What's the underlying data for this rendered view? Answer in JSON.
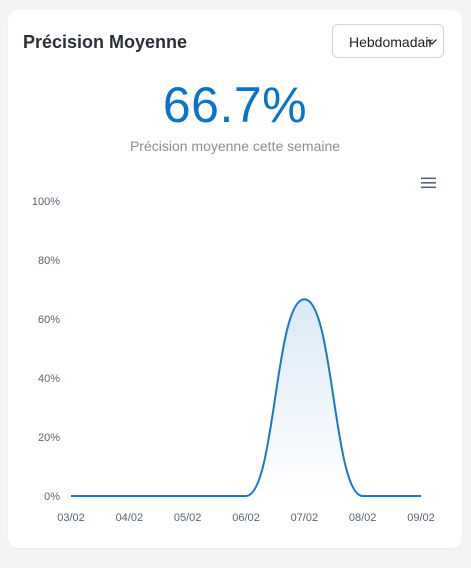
{
  "card": {
    "title": "Précision Moyenne",
    "period_select": {
      "value": "Hebdomadaire"
    },
    "metric": {
      "value": "66.7%",
      "caption": "Précision moyenne cette semaine"
    },
    "menu_icon": "hamburger-menu-icon"
  },
  "colors": {
    "accent": "#0c73c9",
    "line": "#1a78c9",
    "text_muted": "#8a8f98"
  },
  "chart_data": {
    "type": "area",
    "x": [
      "03/02",
      "04/02",
      "05/02",
      "06/02",
      "07/02",
      "08/02",
      "09/02"
    ],
    "series": [
      {
        "values": [
          0,
          0,
          0,
          0,
          66.7,
          0,
          0
        ]
      }
    ],
    "y_ticks": [
      "0%",
      "20%",
      "40%",
      "60%",
      "80%",
      "100%"
    ],
    "ylim": [
      0,
      100
    ],
    "grid": false,
    "legend": "none"
  }
}
